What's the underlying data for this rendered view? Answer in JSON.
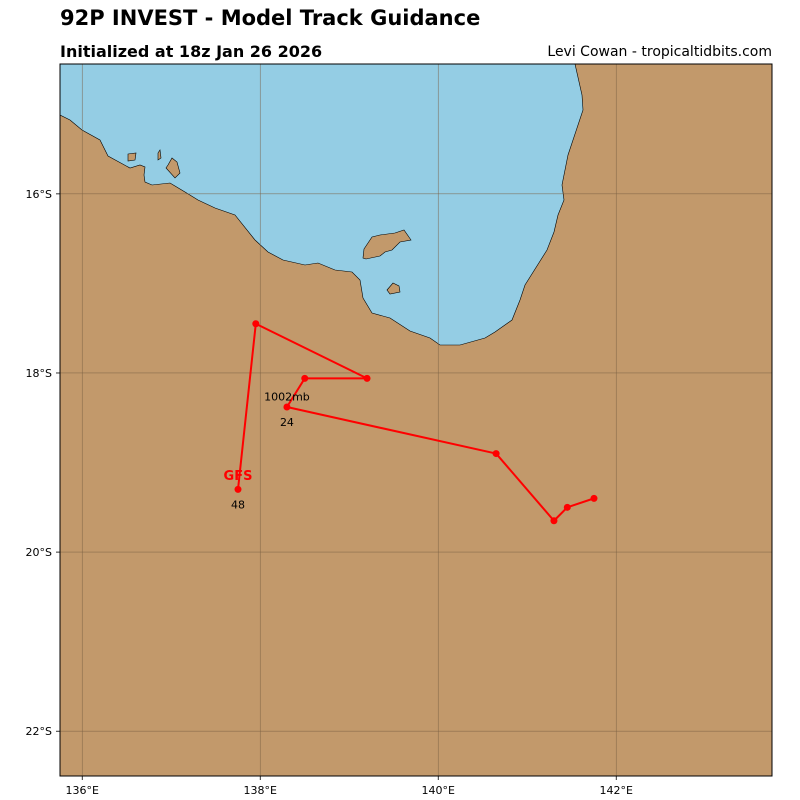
{
  "header": {
    "title": "92P INVEST - Model Track Guidance",
    "subtitle": "Initialized at 18z Jan 26 2026",
    "credit": "Levi Cowan - tropicaltidbits.com"
  },
  "colors": {
    "land": "#c2996b",
    "water": "#94cde4",
    "track": "#ff0000",
    "grid": "#7a6044"
  },
  "chart_data": {
    "type": "map-track",
    "lon_range": [
      135.75,
      143.75
    ],
    "lat_range": [
      -22.5,
      -14.55
    ],
    "lon_ticks": [
      {
        "value": 136,
        "label": "136°E"
      },
      {
        "value": 138,
        "label": "138°E"
      },
      {
        "value": 140,
        "label": "140°E"
      },
      {
        "value": 142,
        "label": "142°E"
      }
    ],
    "lat_ticks": [
      {
        "value": -16,
        "label": "16°S"
      },
      {
        "value": -18,
        "label": "18°S"
      },
      {
        "value": -20,
        "label": "20°S"
      },
      {
        "value": -22,
        "label": "22°S"
      }
    ],
    "grid": true,
    "track": {
      "name": "GFS",
      "points": [
        {
          "lon": 141.75,
          "lat": -19.4
        },
        {
          "lon": 141.45,
          "lat": -19.5
        },
        {
          "lon": 141.3,
          "lat": -19.65
        },
        {
          "lon": 140.65,
          "lat": -18.9
        },
        {
          "lon": 138.3,
          "lat": -18.38
        },
        {
          "lon": 138.5,
          "lat": -18.06
        },
        {
          "lon": 139.2,
          "lat": -18.06
        },
        {
          "lon": 137.95,
          "lat": -17.45
        },
        {
          "lon": 137.75,
          "lat": -19.3
        }
      ]
    },
    "annotations": [
      {
        "text": "1002mb",
        "lon": 138.3,
        "lat": -18.26
      },
      {
        "text": "24",
        "lon": 138.3,
        "lat": -18.55
      },
      {
        "text": "48",
        "lon": 137.75,
        "lat": -19.47
      }
    ],
    "track_label": {
      "text": "GFS",
      "lon": 137.75,
      "lat": -19.14
    }
  }
}
